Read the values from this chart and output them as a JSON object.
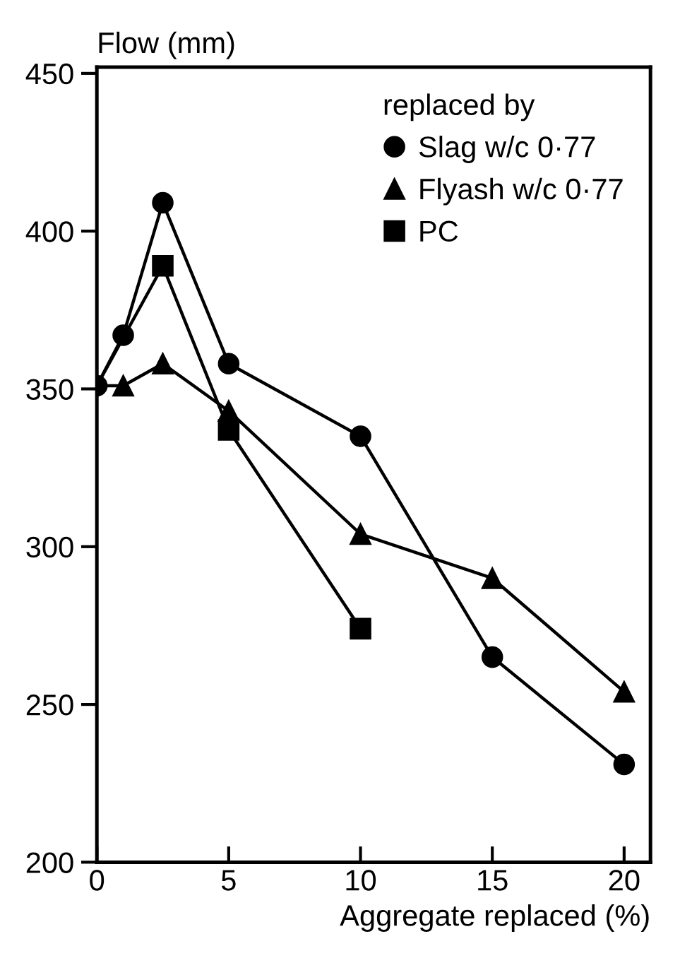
{
  "chart_data": {
    "type": "line",
    "ylabel": "Flow (mm)",
    "xlabel": "Aggregate replaced (%)",
    "legend_title": "replaced by",
    "legend": "top right",
    "grid": false,
    "xlim": [
      0,
      21
    ],
    "xticks": [
      0,
      5,
      10,
      15,
      20
    ],
    "ylim": [
      200,
      452
    ],
    "yticks": [
      200,
      250,
      300,
      350,
      400,
      450
    ],
    "series": [
      {
        "name": "Slag w/c 0·77",
        "color": "#000000",
        "marker": "circle",
        "x": [
          0,
          1,
          2.5,
          5,
          10,
          15,
          20
        ],
        "values": [
          351,
          367,
          409,
          358,
          335,
          265,
          231
        ]
      },
      {
        "name": "Flyash w/c 0·77",
        "color": "#000000",
        "marker": "triangle",
        "x": [
          0,
          1,
          2.5,
          5,
          10,
          15,
          20
        ],
        "values": [
          351,
          351,
          358,
          343,
          304,
          290,
          254
        ]
      },
      {
        "name": "PC",
        "color": "#000000",
        "marker": "square",
        "x": [
          0,
          2.5,
          5,
          10
        ],
        "values": [
          351,
          389,
          337,
          274
        ]
      }
    ]
  }
}
